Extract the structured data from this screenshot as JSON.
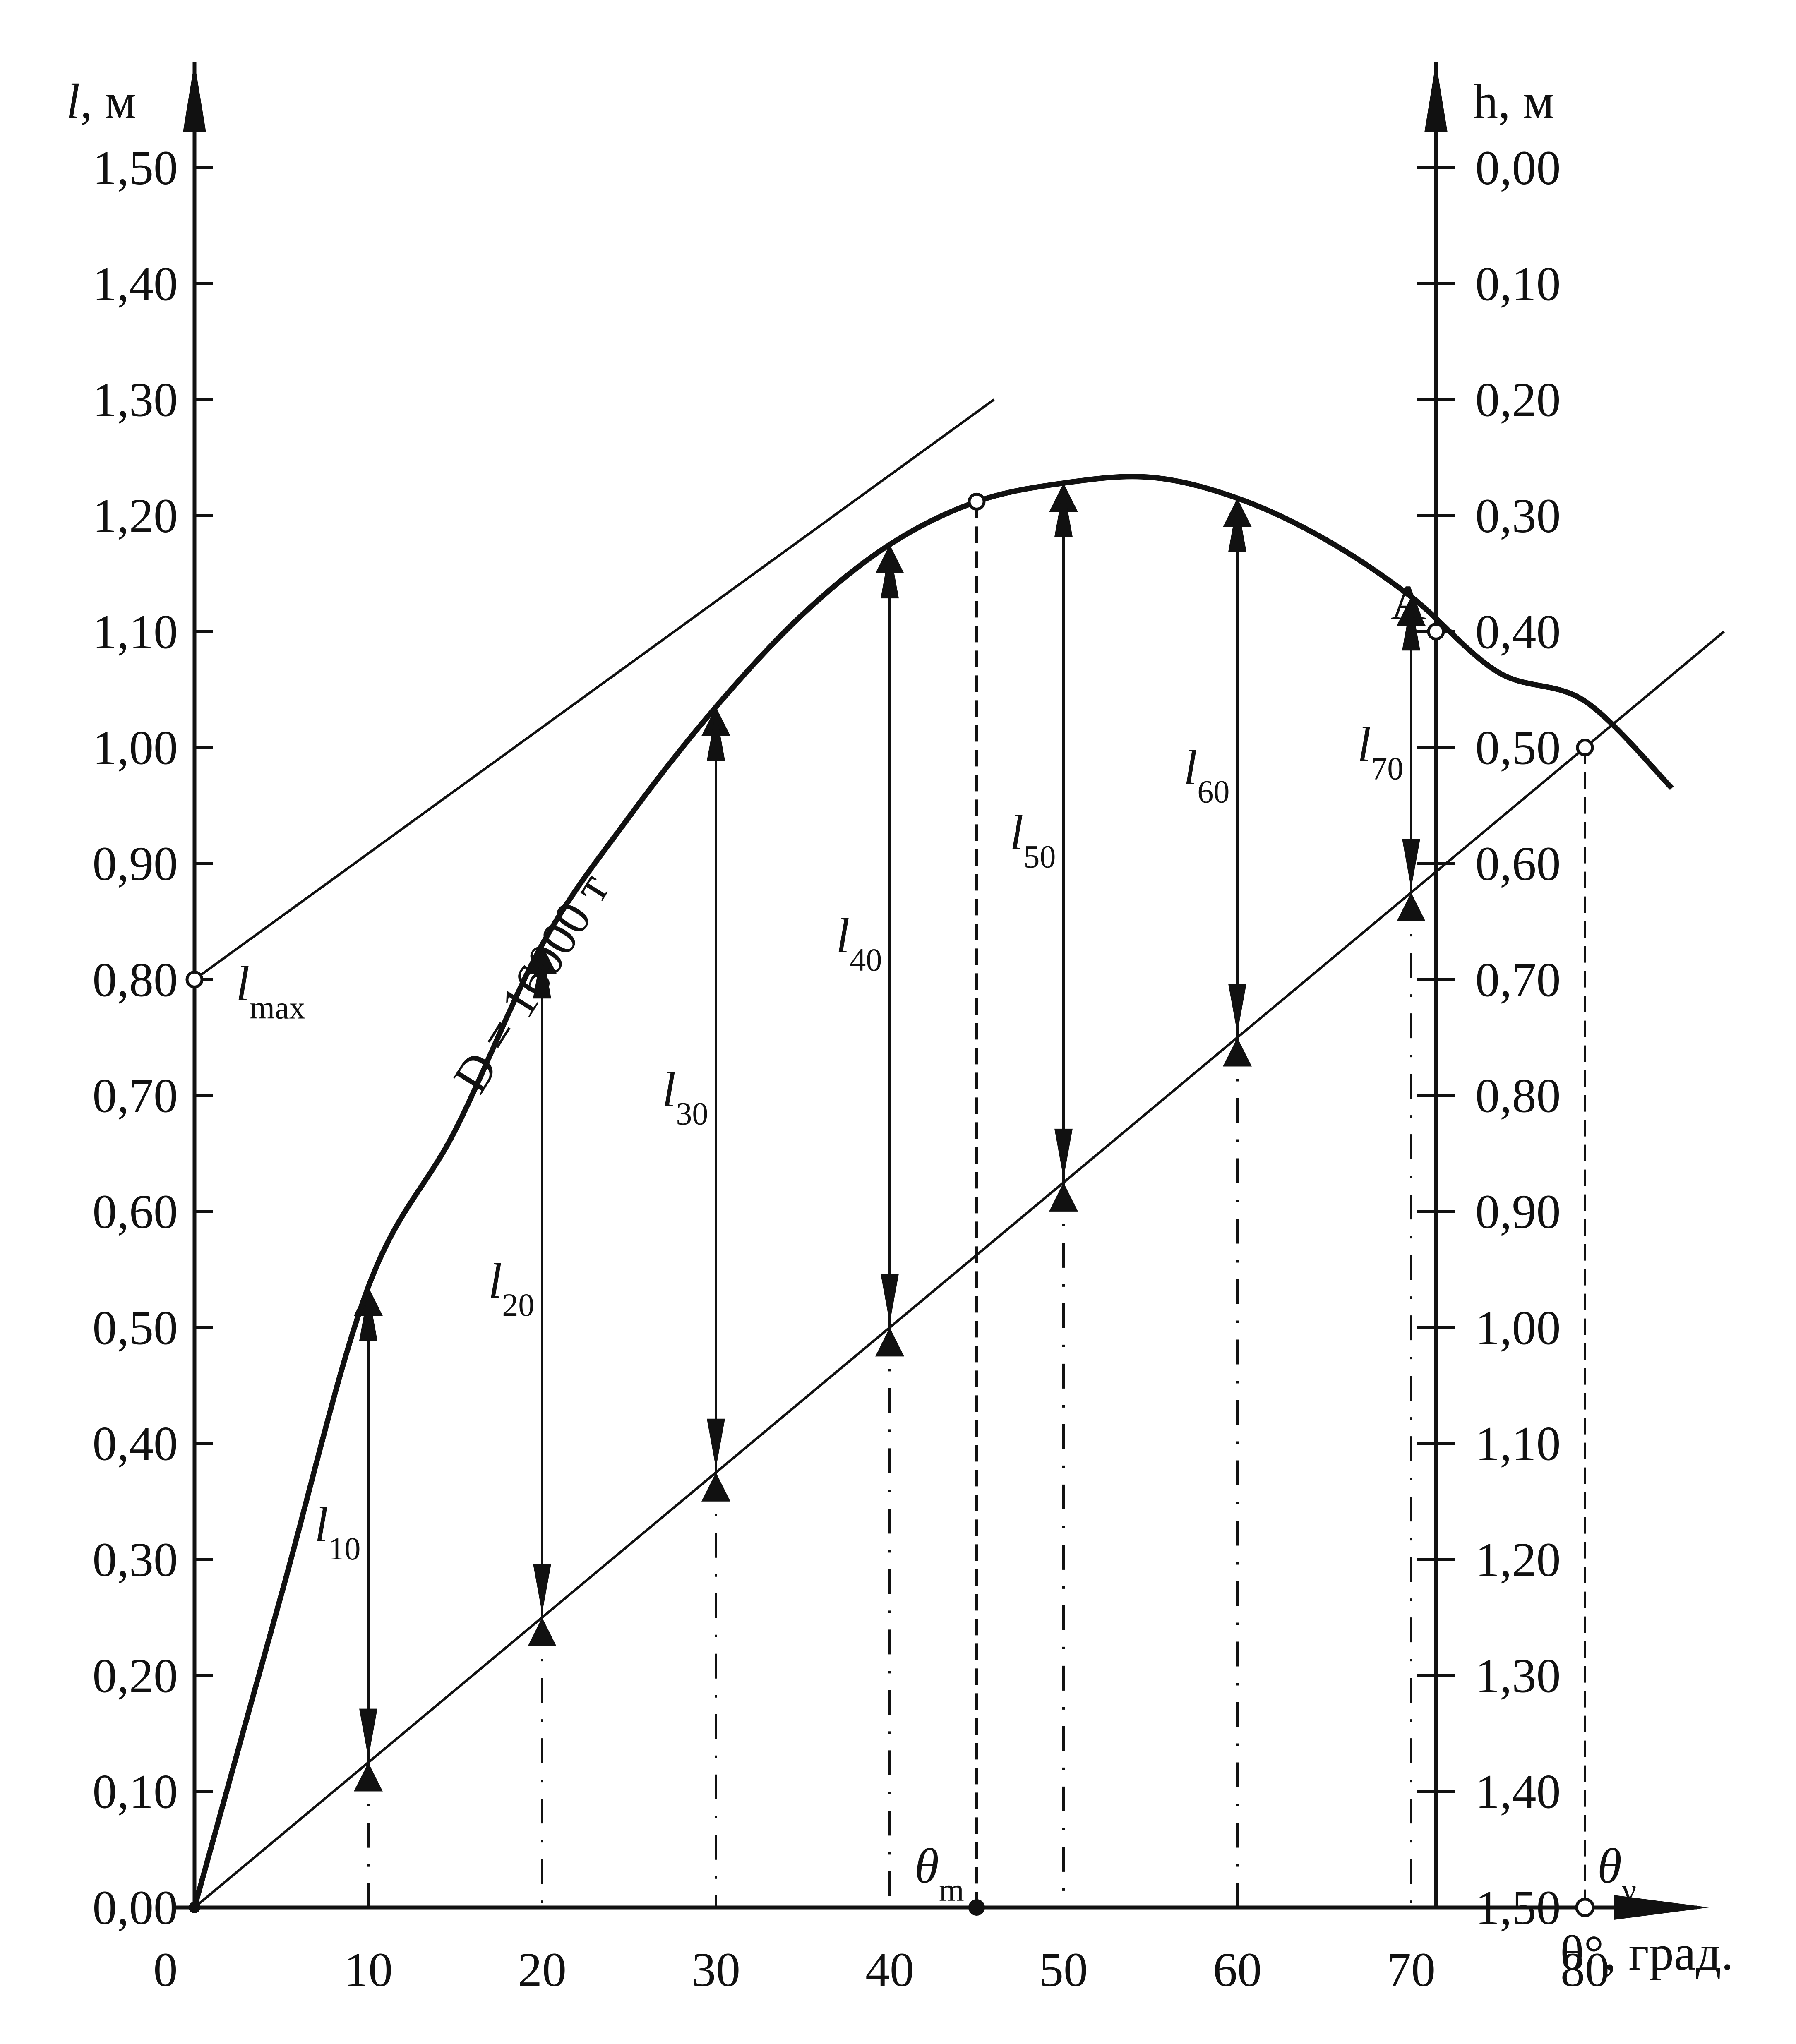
{
  "chart_data": {
    "type": "line",
    "left_axis": {
      "label": "l,",
      "unit": "м",
      "ticks": [
        "0,00",
        "0,10",
        "0,20",
        "0,30",
        "0,40",
        "0,50",
        "0,60",
        "0,70",
        "0,80",
        "0,90",
        "1,00",
        "1,10",
        "1,20",
        "1,30",
        "1,40",
        "1,50"
      ],
      "range": [
        0,
        1.5
      ]
    },
    "right_axis": {
      "label": "h,",
      "unit": "м",
      "ticks": [
        "1,50",
        "1,40",
        "1,30",
        "1,20",
        "1,10",
        "1,00",
        "0,90",
        "0,80",
        "0,70",
        "0,60",
        "0,50",
        "0,40",
        "0,30",
        "0,20",
        "0,10",
        "0,00"
      ]
    },
    "x_axis": {
      "label": "θ°, град.",
      "tick_labels": [
        "0",
        "10",
        "20",
        "30",
        "40",
        "50",
        "60",
        "70",
        "80"
      ]
    },
    "curve_label": "D = 16000 т",
    "curve": {
      "theta": [
        0,
        5,
        10,
        15,
        20,
        25,
        30,
        35,
        40,
        45,
        50,
        55,
        60,
        65,
        70,
        75,
        80,
        85
      ],
      "l": [
        0,
        0.27,
        0.535,
        0.67,
        0.83,
        0.94,
        1.035,
        1.115,
        1.175,
        1.212,
        1.228,
        1.233,
        1.215,
        1.18,
        1.13,
        1.065,
        1.04,
        0.965
      ]
    },
    "tangent": {
      "from": [
        0,
        0.8
      ],
      "to": [
        46,
        1.3
      ]
    },
    "line_A": {
      "from": [
        0,
        0.0
      ],
      "to": [
        88,
        1.1
      ]
    },
    "arms": [
      {
        "label": "l",
        "sub": "10",
        "theta": 10
      },
      {
        "label": "l",
        "sub": "20",
        "theta": 20
      },
      {
        "label": "l",
        "sub": "30",
        "theta": 30
      },
      {
        "label": "l",
        "sub": "40",
        "theta": 40
      },
      {
        "label": "l",
        "sub": "50",
        "theta": 50
      },
      {
        "label": "l",
        "sub": "60",
        "theta": 60
      },
      {
        "label": "l",
        "sub": "70",
        "theta": 70
      }
    ],
    "annotations": {
      "lmax": {
        "label": "l",
        "sub": "max",
        "value": 0.8
      },
      "A": {
        "label": "A",
        "value": 1.1
      },
      "theta_m": {
        "label": "θ",
        "sub": "m",
        "theta": 45
      },
      "theta_v": {
        "label": "θ",
        "sub": "ν",
        "theta": 80
      }
    }
  }
}
